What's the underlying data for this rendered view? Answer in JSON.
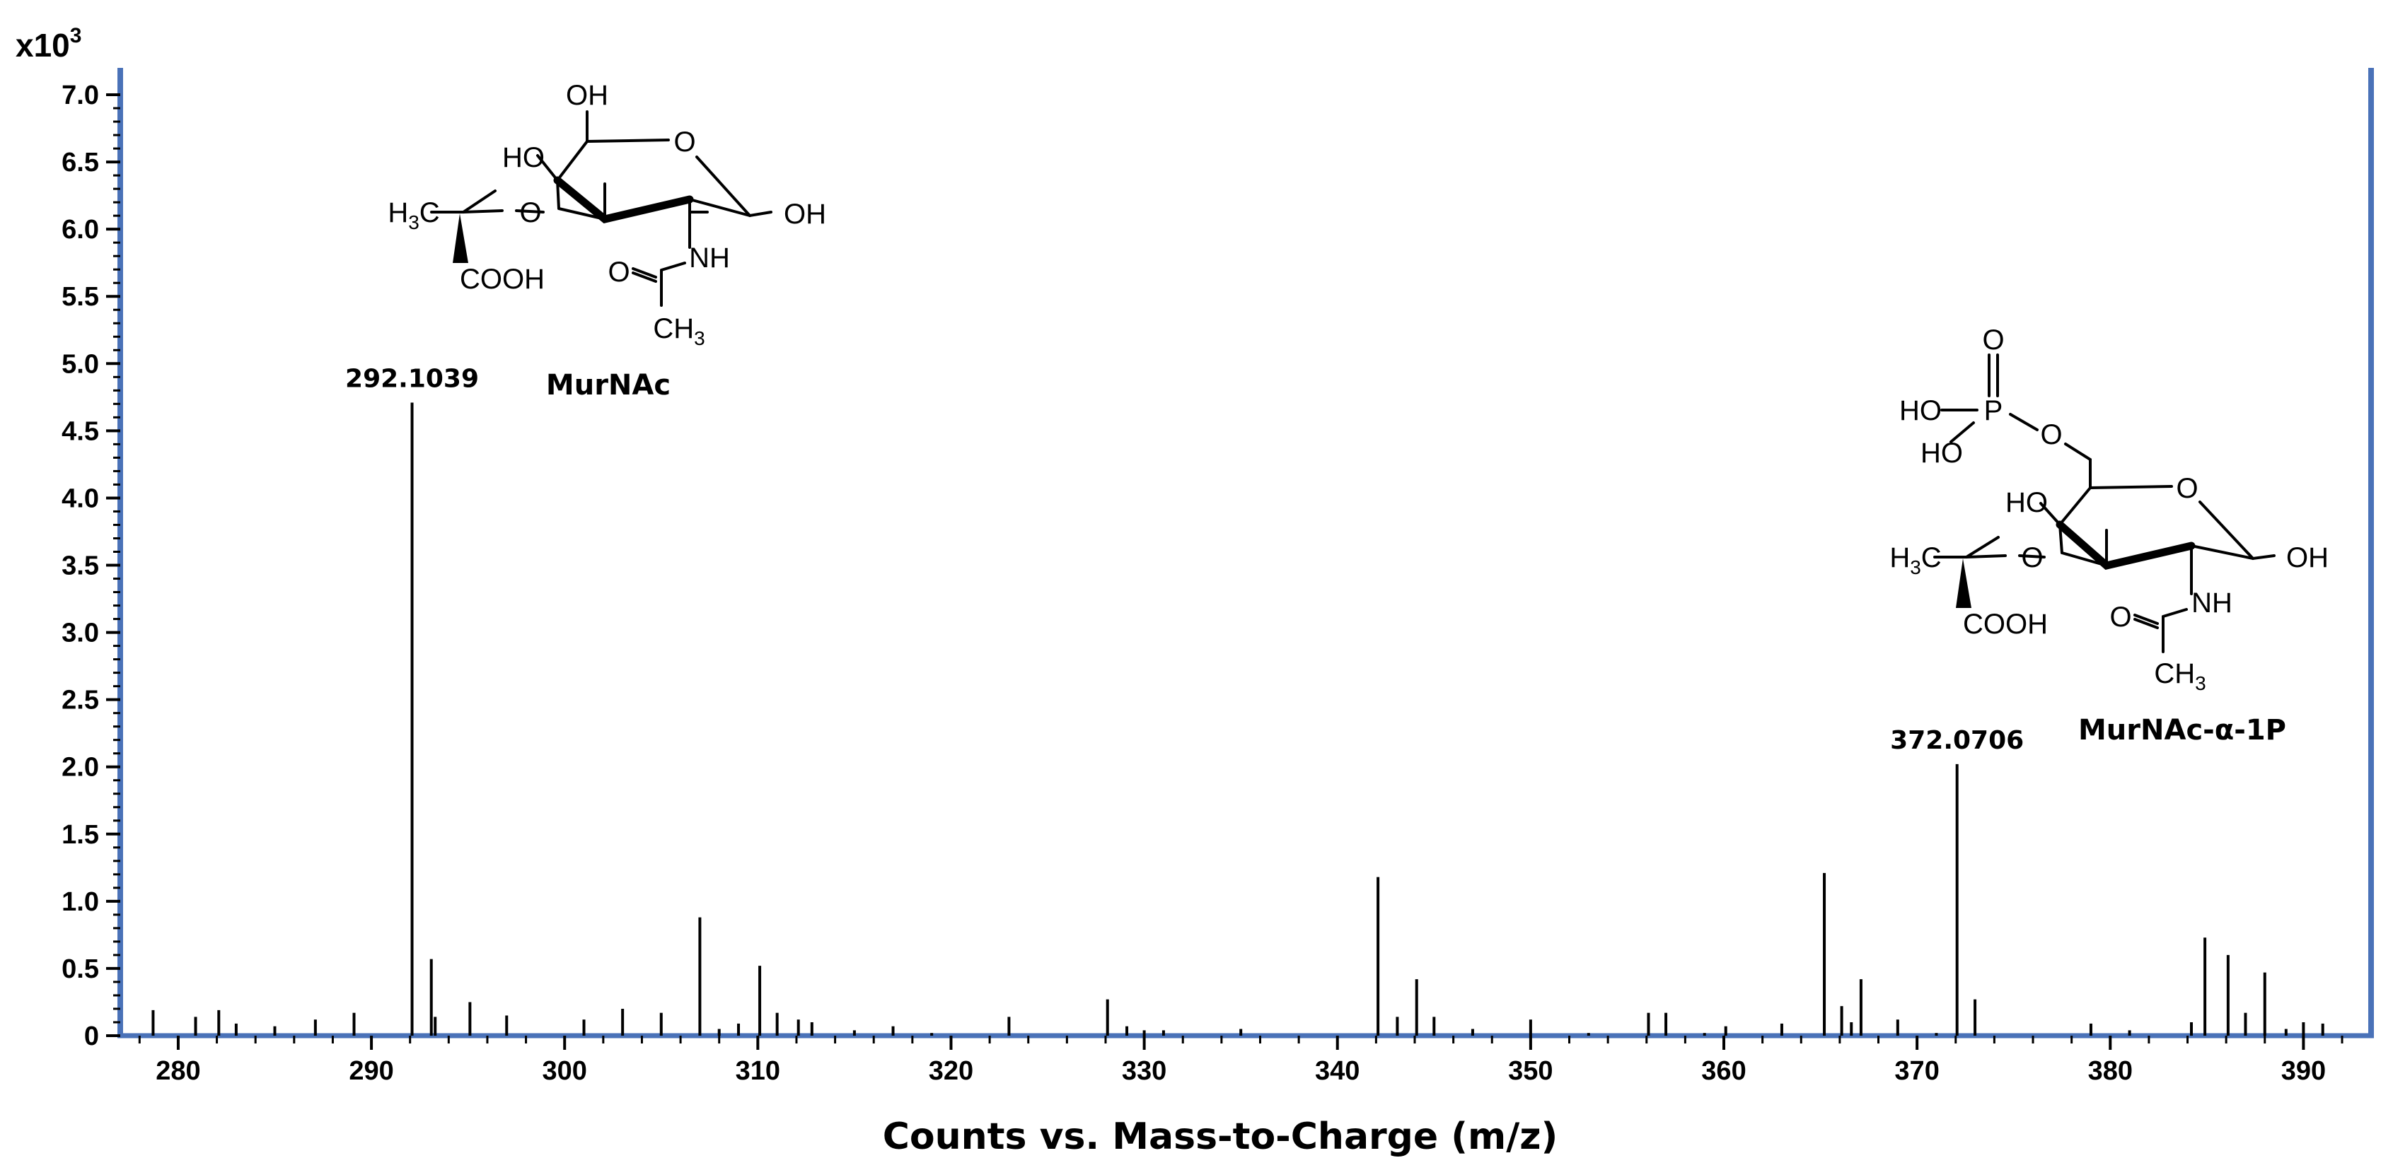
{
  "chart_data": {
    "type": "bar",
    "title": "",
    "xlabel": "Counts vs. Mass-to-Charge (m/z)",
    "ylabel": "",
    "y_multiplier": {
      "base": "x10",
      "exponent": "3"
    },
    "xlim": [
      277,
      393.5
    ],
    "ylim": [
      0,
      7.2
    ],
    "x_ticks": [
      280,
      290,
      300,
      310,
      320,
      330,
      340,
      350,
      360,
      370,
      380,
      390
    ],
    "y_ticks": [
      {
        "v": 0,
        "t": "0"
      },
      {
        "v": 0.5,
        "t": "0.5"
      },
      {
        "v": 1.0,
        "t": "1.0"
      },
      {
        "v": 1.5,
        "t": "1.5"
      },
      {
        "v": 2.0,
        "t": "2.0"
      },
      {
        "v": 2.5,
        "t": "2.5"
      },
      {
        "v": 3.0,
        "t": "3.0"
      },
      {
        "v": 3.5,
        "t": "3.5"
      },
      {
        "v": 4.0,
        "t": "4.0"
      },
      {
        "v": 4.5,
        "t": "4.5"
      },
      {
        "v": 5.0,
        "t": "5.0"
      },
      {
        "v": 5.5,
        "t": "5.5"
      },
      {
        "v": 6.0,
        "t": "6.0"
      },
      {
        "v": 6.5,
        "t": "6.5"
      },
      {
        "v": 7.0,
        "t": "7.0"
      }
    ],
    "peaks": [
      {
        "mz": 278.7,
        "i": 0.19
      },
      {
        "mz": 280.9,
        "i": 0.14
      },
      {
        "mz": 282.1,
        "i": 0.19
      },
      {
        "mz": 283.0,
        "i": 0.09
      },
      {
        "mz": 285.0,
        "i": 0.07
      },
      {
        "mz": 287.1,
        "i": 0.12
      },
      {
        "mz": 289.1,
        "i": 0.17
      },
      {
        "mz": 292.1039,
        "i": 4.71,
        "label": "292.1039"
      },
      {
        "mz": 293.1,
        "i": 0.57
      },
      {
        "mz": 293.3,
        "i": 0.14
      },
      {
        "mz": 295.1,
        "i": 0.25
      },
      {
        "mz": 297.0,
        "i": 0.15
      },
      {
        "mz": 301.0,
        "i": 0.12
      },
      {
        "mz": 303.0,
        "i": 0.2
      },
      {
        "mz": 305.0,
        "i": 0.17
      },
      {
        "mz": 307.0,
        "i": 0.88
      },
      {
        "mz": 308.0,
        "i": 0.05
      },
      {
        "mz": 309.0,
        "i": 0.09
      },
      {
        "mz": 310.1,
        "i": 0.52
      },
      {
        "mz": 311.0,
        "i": 0.17
      },
      {
        "mz": 312.1,
        "i": 0.12
      },
      {
        "mz": 312.8,
        "i": 0.1
      },
      {
        "mz": 315.0,
        "i": 0.04
      },
      {
        "mz": 317.0,
        "i": 0.07
      },
      {
        "mz": 319.0,
        "i": 0.02
      },
      {
        "mz": 323.0,
        "i": 0.14
      },
      {
        "mz": 328.1,
        "i": 0.27
      },
      {
        "mz": 329.1,
        "i": 0.07
      },
      {
        "mz": 330.0,
        "i": 0.04
      },
      {
        "mz": 331.0,
        "i": 0.04
      },
      {
        "mz": 335.0,
        "i": 0.05
      },
      {
        "mz": 342.1,
        "i": 1.18
      },
      {
        "mz": 343.1,
        "i": 0.14
      },
      {
        "mz": 344.1,
        "i": 0.42
      },
      {
        "mz": 345.0,
        "i": 0.14
      },
      {
        "mz": 347.0,
        "i": 0.05
      },
      {
        "mz": 350.0,
        "i": 0.12
      },
      {
        "mz": 353.0,
        "i": 0.02
      },
      {
        "mz": 356.1,
        "i": 0.17
      },
      {
        "mz": 357.0,
        "i": 0.17
      },
      {
        "mz": 359.0,
        "i": 0.02
      },
      {
        "mz": 360.1,
        "i": 0.07
      },
      {
        "mz": 363.0,
        "i": 0.09
      },
      {
        "mz": 365.2,
        "i": 1.21
      },
      {
        "mz": 366.1,
        "i": 0.22
      },
      {
        "mz": 366.6,
        "i": 0.1
      },
      {
        "mz": 367.1,
        "i": 0.42
      },
      {
        "mz": 369.0,
        "i": 0.12
      },
      {
        "mz": 371.0,
        "i": 0.02
      },
      {
        "mz": 372.0706,
        "i": 2.02,
        "label": "372.0706"
      },
      {
        "mz": 373.0,
        "i": 0.27
      },
      {
        "mz": 379.0,
        "i": 0.09
      },
      {
        "mz": 381.0,
        "i": 0.04
      },
      {
        "mz": 384.2,
        "i": 0.1
      },
      {
        "mz": 384.9,
        "i": 0.73
      },
      {
        "mz": 386.1,
        "i": 0.6
      },
      {
        "mz": 387.0,
        "i": 0.17
      },
      {
        "mz": 388.0,
        "i": 0.47
      },
      {
        "mz": 389.1,
        "i": 0.05
      },
      {
        "mz": 390.0,
        "i": 0.1
      },
      {
        "mz": 391.0,
        "i": 0.09
      }
    ],
    "grid": false,
    "legend": "none"
  },
  "structures": {
    "murnac": {
      "name": "MurNAc",
      "atoms": {
        "oh_top": "OH",
        "ho_left": "HO",
        "o_ring": "O",
        "oh_right": "OH",
        "h3c_main": "H",
        "h3c_sub": "3",
        "h3c_c": "C",
        "o_ether": "O",
        "nh": "NH",
        "o_carbonyl": "O",
        "cooh": "COOH",
        "ch3_c": "CH",
        "ch3_sub": "3"
      }
    },
    "murnac_1p": {
      "name": "MurNAc-α-1P",
      "atoms": {
        "o_top": "O",
        "ho_p1": "HO",
        "p": "P",
        "o_link": "O",
        "ho_p2": "HO",
        "ho_left": "HO",
        "o_ring": "O",
        "oh_right": "OH",
        "h3c_main": "H",
        "h3c_sub": "3",
        "h3c_c": "C",
        "o_ether": "O",
        "nh": "NH",
        "o_carbonyl": "O",
        "cooh": "COOH",
        "ch3_c": "CH",
        "ch3_sub": "3"
      }
    }
  },
  "colors": {
    "axis_frame": "#4a72b8",
    "peaks": "#000000",
    "ticks": "#000000"
  }
}
